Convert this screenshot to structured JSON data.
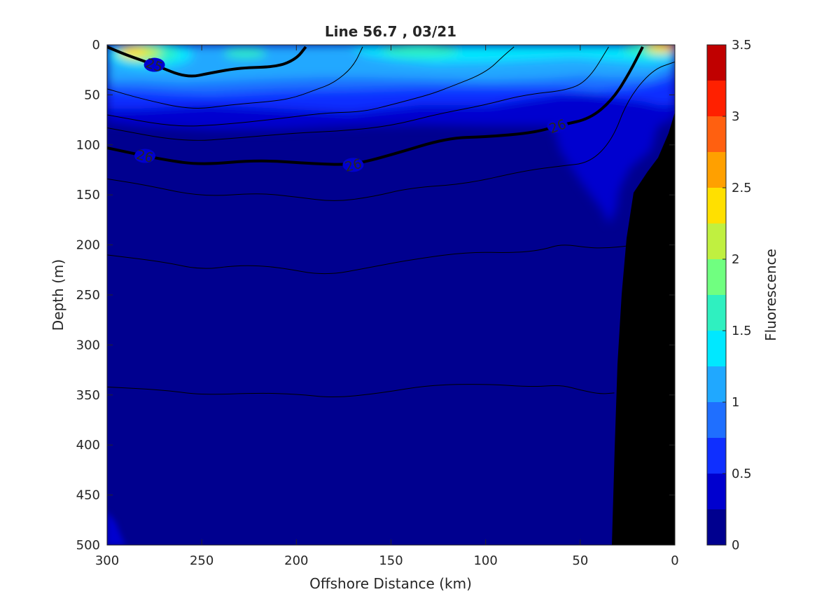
{
  "chart_data": {
    "type": "heatmap",
    "title": "Line 56.7 , 03/21",
    "xlabel": "Offshore Distance (km)",
    "ylabel": "Depth (m)",
    "colorbar_label": "Fluorescence",
    "xlim": [
      300,
      0
    ],
    "ylim": [
      0,
      500
    ],
    "x_reversed": true,
    "y_reversed": true,
    "grid": false,
    "xticks": [
      300,
      250,
      200,
      150,
      100,
      50,
      0
    ],
    "xtick_labels": [
      "300",
      "250",
      "200",
      "150",
      "100",
      "50",
      "0"
    ],
    "yticks": [
      0,
      50,
      100,
      150,
      200,
      250,
      300,
      350,
      400,
      450,
      500
    ],
    "ytick_labels": [
      "0",
      "50",
      "100",
      "150",
      "200",
      "250",
      "300",
      "350",
      "400",
      "450",
      "500"
    ],
    "colorbar": {
      "range": [
        0,
        3.5
      ],
      "levels": [
        0,
        0.25,
        0.5,
        0.75,
        1,
        1.25,
        1.5,
        1.75,
        2,
        2.25,
        2.5,
        2.75,
        3,
        3.25,
        3.5
      ],
      "colors": [
        "#00008f",
        "#0000cf",
        "#0f2fff",
        "#1f6fff",
        "#20a8ff",
        "#00e8ff",
        "#2ff0c0",
        "#70ff80",
        "#c0f040",
        "#ffe000",
        "#ffa000",
        "#ff6010",
        "#ff2000",
        "#c00000"
      ],
      "ticks": [
        0,
        0.5,
        1,
        1.5,
        2,
        2.5,
        3,
        3.5
      ],
      "tick_labels": [
        "0",
        "0.5",
        "1",
        "1.5",
        "2",
        "2.5",
        "3",
        "3.5"
      ]
    },
    "isopycnals": [
      {
        "label": "25",
        "bold": true,
        "points": [
          [
            300,
            2
          ],
          [
            290,
            10
          ],
          [
            275,
            20
          ],
          [
            258,
            33
          ],
          [
            245,
            28
          ],
          [
            230,
            23
          ],
          [
            210,
            22
          ],
          [
            200,
            14
          ],
          [
            195,
            2
          ]
        ]
      },
      {
        "label": "26",
        "bold": true,
        "points": [
          [
            300,
            103
          ],
          [
            270,
            115
          ],
          [
            250,
            120
          ],
          [
            220,
            115
          ],
          [
            190,
            119
          ],
          [
            170,
            120
          ],
          [
            150,
            110
          ],
          [
            120,
            93
          ],
          [
            100,
            92
          ],
          [
            75,
            88
          ],
          [
            60,
            80
          ],
          [
            45,
            74
          ],
          [
            33,
            55
          ],
          [
            24,
            28
          ],
          [
            17,
            2
          ]
        ]
      },
      {
        "label": "",
        "bold": false,
        "points": [
          [
            300,
            44
          ],
          [
            280,
            55
          ],
          [
            255,
            65
          ],
          [
            235,
            60
          ],
          [
            210,
            56
          ],
          [
            200,
            52
          ],
          [
            190,
            45
          ],
          [
            180,
            38
          ],
          [
            170,
            22
          ],
          [
            165,
            2
          ]
        ]
      },
      {
        "label": "",
        "bold": false,
        "points": [
          [
            300,
            70
          ],
          [
            265,
            82
          ],
          [
            240,
            80
          ],
          [
            210,
            74
          ],
          [
            185,
            68
          ],
          [
            165,
            67
          ],
          [
            150,
            60
          ],
          [
            130,
            50
          ],
          [
            120,
            43
          ],
          [
            100,
            28
          ],
          [
            90,
            10
          ],
          [
            85,
            2
          ]
        ]
      },
      {
        "label": "",
        "bold": false,
        "points": [
          [
            300,
            83
          ],
          [
            260,
            97
          ],
          [
            230,
            93
          ],
          [
            200,
            88
          ],
          [
            175,
            86
          ],
          [
            150,
            81
          ],
          [
            125,
            69
          ],
          [
            100,
            60
          ],
          [
            80,
            50
          ],
          [
            55,
            45
          ],
          [
            45,
            33
          ],
          [
            35,
            2
          ]
        ]
      },
      {
        "label": "",
        "bold": false,
        "points": [
          [
            300,
            134
          ],
          [
            280,
            140
          ],
          [
            250,
            152
          ],
          [
            220,
            148
          ],
          [
            200,
            152
          ],
          [
            180,
            157
          ],
          [
            160,
            152
          ],
          [
            140,
            143
          ],
          [
            110,
            139
          ],
          [
            80,
            126
          ],
          [
            60,
            121
          ],
          [
            45,
            118
          ],
          [
            33,
            95
          ],
          [
            25,
            55
          ],
          [
            12,
            25
          ],
          [
            0,
            17
          ]
        ]
      },
      {
        "label": "",
        "bold": false,
        "points": [
          [
            300,
            210
          ],
          [
            270,
            217
          ],
          [
            250,
            225
          ],
          [
            230,
            220
          ],
          [
            210,
            222
          ],
          [
            185,
            231
          ],
          [
            160,
            222
          ],
          [
            140,
            215
          ],
          [
            110,
            207
          ],
          [
            85,
            208
          ],
          [
            70,
            205
          ],
          [
            60,
            199
          ],
          [
            45,
            203
          ],
          [
            35,
            203
          ],
          [
            25,
            201
          ]
        ]
      },
      {
        "label": "",
        "bold": false,
        "points": [
          [
            300,
            342
          ],
          [
            270,
            345
          ],
          [
            250,
            350
          ],
          [
            220,
            348
          ],
          [
            200,
            349
          ],
          [
            180,
            353
          ],
          [
            155,
            348
          ],
          [
            130,
            340
          ],
          [
            100,
            339
          ],
          [
            75,
            342
          ],
          [
            60,
            340
          ],
          [
            50,
            345
          ],
          [
            40,
            349
          ],
          [
            32,
            348
          ]
        ]
      }
    ]
  }
}
